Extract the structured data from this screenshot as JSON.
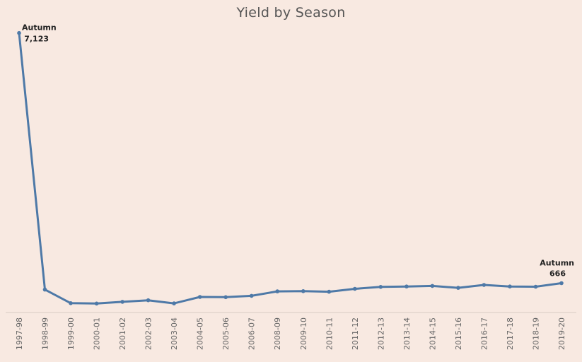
{
  "chart_data": {
    "type": "line",
    "title": "Yield by Season",
    "xlabel": "",
    "ylabel": "",
    "categories": [
      "1997-98",
      "1998-99",
      "1999-00",
      "2000-01",
      "2001-02",
      "2002-03",
      "2003-04",
      "2004-05",
      "2005-06",
      "2006-07",
      "2008-09",
      "2009-10",
      "2010-11",
      "2011-12",
      "2012-13",
      "2013-14",
      "2014-15",
      "2015-16",
      "2016-17",
      "2017-18",
      "2018-19",
      "2019-20"
    ],
    "series": [
      {
        "values": [
          7123,
          500,
          150,
          140,
          185,
          225,
          145,
          310,
          305,
          340,
          455,
          460,
          445,
          520,
          570,
          580,
          595,
          545,
          620,
          580,
          575,
          666
        ],
        "color": "#4e79a7"
      }
    ],
    "annotations": [
      {
        "index": 0,
        "label": "Autumn",
        "value_text": "7,123"
      },
      {
        "index": 21,
        "label": "Autumn",
        "value_text": "666"
      }
    ],
    "ylim": [
      0,
      7300
    ],
    "grid": false,
    "legend": "none"
  }
}
